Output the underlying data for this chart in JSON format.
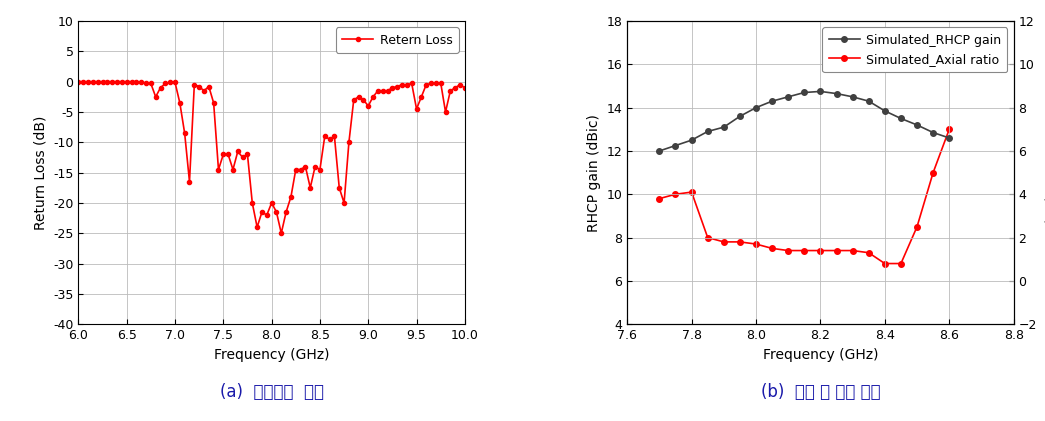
{
  "return_loss": {
    "freq": [
      6.0,
      6.05,
      6.1,
      6.15,
      6.2,
      6.25,
      6.3,
      6.35,
      6.4,
      6.45,
      6.5,
      6.55,
      6.6,
      6.65,
      6.7,
      6.75,
      6.8,
      6.85,
      6.9,
      6.95,
      7.0,
      7.05,
      7.1,
      7.15,
      7.2,
      7.25,
      7.3,
      7.35,
      7.4,
      7.45,
      7.5,
      7.55,
      7.6,
      7.65,
      7.7,
      7.75,
      7.8,
      7.85,
      7.9,
      7.95,
      8.0,
      8.05,
      8.1,
      8.15,
      8.2,
      8.25,
      8.3,
      8.35,
      8.4,
      8.45,
      8.5,
      8.55,
      8.6,
      8.65,
      8.7,
      8.75,
      8.8,
      8.85,
      8.9,
      8.95,
      9.0,
      9.05,
      9.1,
      9.15,
      9.2,
      9.25,
      9.3,
      9.35,
      9.4,
      9.45,
      9.5,
      9.55,
      9.6,
      9.65,
      9.7,
      9.75,
      9.8,
      9.85,
      9.9,
      9.95,
      10.0
    ],
    "rl": [
      0.0,
      0.0,
      0.0,
      0.0,
      0.0,
      0.0,
      0.0,
      0.0,
      0.0,
      0.0,
      0.0,
      0.0,
      0.0,
      -0.1,
      -0.2,
      -0.3,
      -2.5,
      -1.0,
      -0.3,
      -0.1,
      -0.1,
      -3.5,
      -8.5,
      -16.5,
      -0.5,
      -0.8,
      -1.5,
      -0.8,
      -3.5,
      -14.5,
      -12.0,
      -12.0,
      -14.5,
      -11.5,
      -12.5,
      -12.0,
      -20.0,
      -24.0,
      -21.5,
      -22.0,
      -20.0,
      -21.5,
      -25.0,
      -21.5,
      -19.0,
      -14.5,
      -14.5,
      -14.0,
      -17.5,
      -14.0,
      -14.5,
      -9.0,
      -9.5,
      -9.0,
      -17.5,
      -20.0,
      -10.0,
      -3.0,
      -2.5,
      -3.0,
      -4.0,
      -2.5,
      -1.5,
      -1.5,
      -1.5,
      -1.0,
      -0.8,
      -0.5,
      -0.5,
      -0.3,
      -4.5,
      -2.5,
      -0.5,
      -0.3,
      -0.2,
      -0.2,
      -5.0,
      -1.5,
      -1.0,
      -0.5,
      -1.0
    ],
    "color": "#FF0000",
    "label": "Retern Loss",
    "xlabel": "Frequency (GHz)",
    "ylabel": "Return Loss (dB)",
    "xlim": [
      6.0,
      10.0
    ],
    "ylim": [
      -40,
      10
    ],
    "xticks": [
      6.0,
      6.5,
      7.0,
      7.5,
      8.0,
      8.5,
      9.0,
      9.5,
      10.0
    ],
    "yticks": [
      -40,
      -35,
      -30,
      -25,
      -20,
      -15,
      -10,
      -5,
      0,
      5,
      10
    ],
    "caption": "(a)  반사손실  특성"
  },
  "gain_axial": {
    "freq_gain": [
      7.7,
      7.75,
      7.8,
      7.85,
      7.9,
      7.95,
      8.0,
      8.05,
      8.1,
      8.15,
      8.2,
      8.25,
      8.3,
      8.35,
      8.4,
      8.45,
      8.5,
      8.55,
      8.6
    ],
    "gain": [
      12.0,
      12.25,
      12.5,
      12.9,
      13.1,
      13.6,
      14.0,
      14.3,
      14.5,
      14.7,
      14.75,
      14.65,
      14.5,
      14.3,
      13.85,
      13.5,
      13.2,
      12.85,
      12.6
    ],
    "freq_axial": [
      7.7,
      7.75,
      7.8,
      7.85,
      7.9,
      7.95,
      8.0,
      8.05,
      8.1,
      8.15,
      8.2,
      8.25,
      8.3,
      8.35,
      8.4,
      8.45,
      8.5,
      8.55,
      8.6
    ],
    "axial": [
      3.8,
      4.0,
      4.1,
      2.0,
      1.8,
      1.8,
      1.7,
      1.5,
      1.4,
      1.4,
      1.4,
      1.4,
      1.4,
      1.3,
      0.8,
      0.8,
      2.5,
      5.0,
      7.0
    ],
    "gain_color": "#404040",
    "axial_color": "#FF0000",
    "gain_label": "Simulated_RHCP gain",
    "axial_label": "Simulated_Axial ratio",
    "xlabel": "Frequency (GHz)",
    "ylabel_left": "RHCP gain (dBic)",
    "ylabel_right": "Axial ratio (dB)",
    "xlim": [
      7.6,
      8.8
    ],
    "ylim_left": [
      4,
      18
    ],
    "ylim_right": [
      -2,
      12
    ],
    "xticks": [
      7.6,
      7.8,
      8.0,
      8.2,
      8.4,
      8.6,
      8.8
    ],
    "yticks_left": [
      4,
      6,
      8,
      10,
      12,
      14,
      16,
      18
    ],
    "yticks_right": [
      -2,
      0,
      2,
      4,
      6,
      8,
      10,
      12
    ],
    "caption": "(b)  이득 및 축비 특성"
  },
  "background_color": "#ffffff",
  "grid_color": "#bbbbbb",
  "caption_fontsize": 12
}
